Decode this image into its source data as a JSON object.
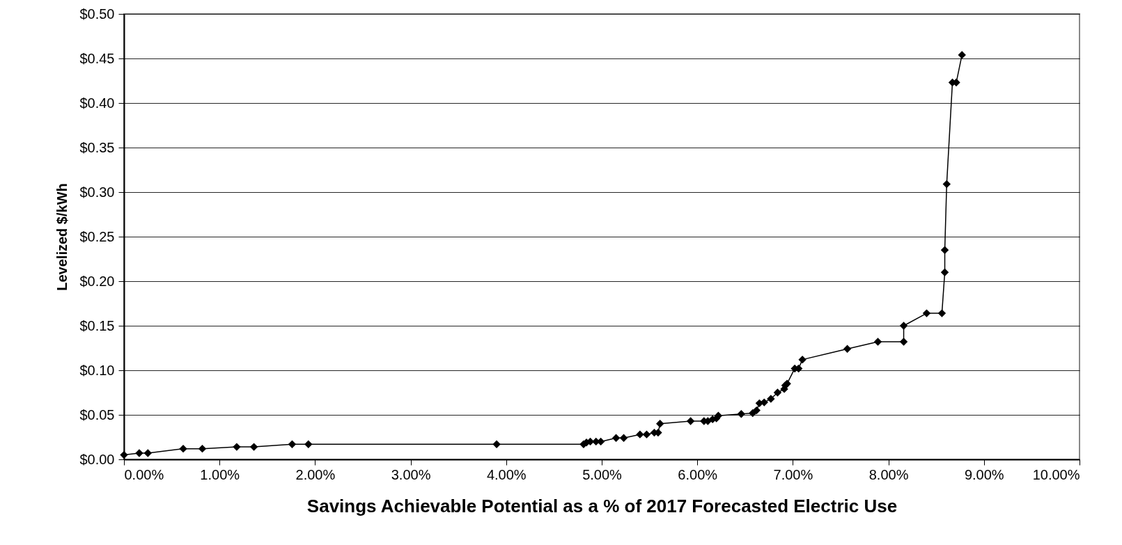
{
  "chart_data": {
    "type": "line",
    "xlabel": "Savings Achievable Potential as a % of 2017 Forecasted Electric Use",
    "ylabel": "Levelized $/kWh",
    "x": [
      0.0,
      0.16,
      0.25,
      0.62,
      0.82,
      1.18,
      1.36,
      1.76,
      1.93,
      3.9,
      4.81,
      4.84,
      4.88,
      4.94,
      4.99,
      5.15,
      5.23,
      5.4,
      5.47,
      5.55,
      5.59,
      5.61,
      5.93,
      6.07,
      6.11,
      6.16,
      6.2,
      6.22,
      6.46,
      6.58,
      6.62,
      6.65,
      6.7,
      6.77,
      6.84,
      6.91,
      6.92,
      6.94,
      7.02,
      7.06,
      7.1,
      7.57,
      7.89,
      8.16,
      8.16,
      8.4,
      8.56,
      8.59,
      8.59,
      8.61,
      8.67,
      8.71,
      8.77
    ],
    "series": [
      {
        "color": "#000000",
        "values": [
          0.005,
          0.007,
          0.007,
          0.012,
          0.012,
          0.014,
          0.014,
          0.017,
          0.017,
          0.017,
          0.017,
          0.019,
          0.02,
          0.02,
          0.02,
          0.024,
          0.024,
          0.028,
          0.028,
          0.03,
          0.03,
          0.04,
          0.043,
          0.043,
          0.043,
          0.045,
          0.046,
          0.049,
          0.051,
          0.052,
          0.055,
          0.063,
          0.064,
          0.068,
          0.075,
          0.079,
          0.083,
          0.085,
          0.102,
          0.102,
          0.112,
          0.124,
          0.132,
          0.132,
          0.15,
          0.164,
          0.164,
          0.21,
          0.235,
          0.309,
          0.423,
          0.423,
          0.454
        ]
      }
    ],
    "xlim": [
      0,
      10
    ],
    "ylim": [
      0,
      0.5
    ],
    "xticks": [
      {
        "value": 0,
        "label": "0.00%"
      },
      {
        "value": 1,
        "label": "1.00%"
      },
      {
        "value": 2,
        "label": "2.00%"
      },
      {
        "value": 3,
        "label": "3.00%"
      },
      {
        "value": 4,
        "label": "4.00%"
      },
      {
        "value": 5,
        "label": "5.00%"
      },
      {
        "value": 6,
        "label": "6.00%"
      },
      {
        "value": 7,
        "label": "7.00%"
      },
      {
        "value": 8,
        "label": "8.00%"
      },
      {
        "value": 9,
        "label": "9.00%"
      },
      {
        "value": 10,
        "label": "10.00%"
      }
    ],
    "yticks": [
      {
        "value": 0,
        "label": "$0.00"
      },
      {
        "value": 0.05,
        "label": "$0.05"
      },
      {
        "value": 0.1,
        "label": "$0.10"
      },
      {
        "value": 0.15,
        "label": "$0.15"
      },
      {
        "value": 0.2,
        "label": "$0.20"
      },
      {
        "value": 0.25,
        "label": "$0.25"
      },
      {
        "value": 0.3,
        "label": "$0.30"
      },
      {
        "value": 0.35,
        "label": "$0.35"
      },
      {
        "value": 0.4,
        "label": "$0.40"
      },
      {
        "value": 0.45,
        "label": "$0.45"
      },
      {
        "value": 0.5,
        "label": "$0.50"
      }
    ],
    "grid": "y",
    "marker": "diamond",
    "line_style": "solid"
  }
}
